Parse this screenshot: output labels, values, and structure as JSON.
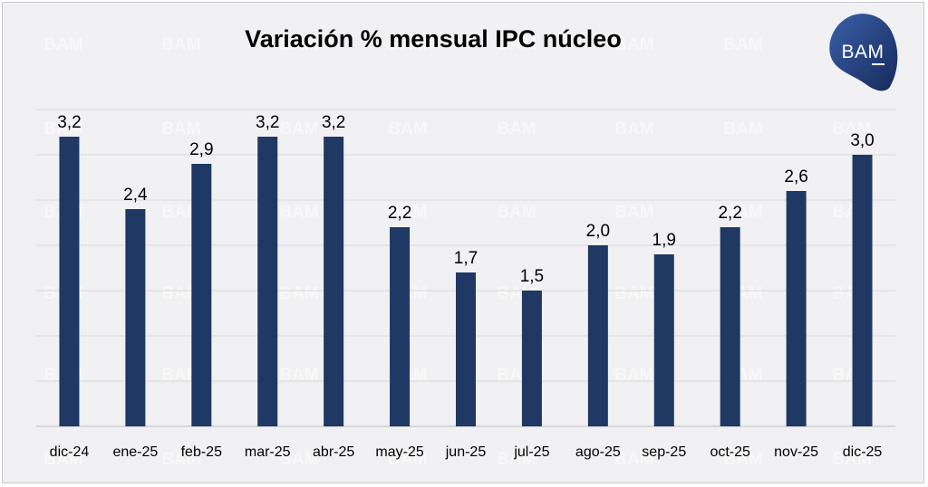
{
  "logo": {
    "text": "BAM",
    "color": "#1f3a6e"
  },
  "watermark": {
    "text": "BAM"
  },
  "chart_data": {
    "type": "bar",
    "title": "Variación % mensual IPC núcleo",
    "xlabel": "",
    "ylabel": "",
    "ylim": [
      0,
      3.5
    ],
    "grid": true,
    "bar_color": "#1f3864",
    "categories": [
      "dic-24",
      "ene-25",
      "feb-25",
      "mar-25",
      "abr-25",
      "may-25",
      "jun-25",
      "jul-25",
      "ago-25",
      "sep-25",
      "oct-25",
      "nov-25",
      "dic-25"
    ],
    "values": [
      3.2,
      2.4,
      2.9,
      3.2,
      3.2,
      2.2,
      1.7,
      1.5,
      2.0,
      1.9,
      2.2,
      2.6,
      3.0
    ],
    "value_labels": [
      "3,2",
      "2,4",
      "2,9",
      "3,2",
      "3,2",
      "2,2",
      "1,7",
      "1,5",
      "2,0",
      "1,9",
      "2,2",
      "2,6",
      "3,0"
    ]
  }
}
